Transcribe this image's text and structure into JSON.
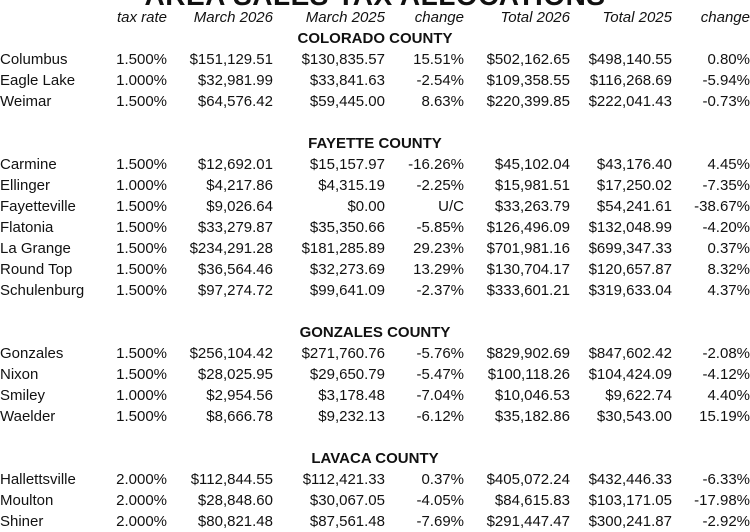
{
  "title": "AREA SALES TAX ALLOCATIONS",
  "headers": [
    "",
    "tax rate",
    "March 2026",
    "March 2025",
    "change",
    "Total 2026",
    "Total 2025",
    "change"
  ],
  "groups": [
    {
      "county": "COLORADO COUNTY",
      "rows": [
        [
          "Columbus",
          "1.500%",
          "$151,129.51",
          "$130,835.57",
          "15.51%",
          "$502,162.65",
          "$498,140.55",
          "0.80%"
        ],
        [
          "Eagle Lake",
          "1.000%",
          "$32,981.99",
          "$33,841.63",
          "-2.54%",
          "$109,358.55",
          "$116,268.69",
          "-5.94%"
        ],
        [
          "Weimar",
          "1.500%",
          "$64,576.42",
          "$59,445.00",
          "8.63%",
          "$220,399.85",
          "$222,041.43",
          "-0.73%"
        ]
      ]
    },
    {
      "county": "FAYETTE COUNTY",
      "rows": [
        [
          "Carmine",
          "1.500%",
          "$12,692.01",
          "$15,157.97",
          "-16.26%",
          "$45,102.04",
          "$43,176.40",
          "4.45%"
        ],
        [
          "Ellinger",
          "1.000%",
          "$4,217.86",
          "$4,315.19",
          "-2.25%",
          "$15,981.51",
          "$17,250.02",
          "-7.35%"
        ],
        [
          "Fayetteville",
          "1.500%",
          "$9,026.64",
          "$0.00",
          "U/C",
          "$33,263.79",
          "$54,241.61",
          "-38.67%"
        ],
        [
          "Flatonia",
          "1.500%",
          "$33,279.87",
          "$35,350.66",
          "-5.85%",
          "$126,496.09",
          "$132,048.99",
          "-4.20%"
        ],
        [
          "La Grange",
          "1.500%",
          "$234,291.28",
          "$181,285.89",
          "29.23%",
          "$701,981.16",
          "$699,347.33",
          "0.37%"
        ],
        [
          "Round Top",
          "1.500%",
          "$36,564.46",
          "$32,273.69",
          "13.29%",
          "$130,704.17",
          "$120,657.87",
          "8.32%"
        ],
        [
          "Schulenburg",
          "1.500%",
          "$97,274.72",
          "$99,641.09",
          "-2.37%",
          "$333,601.21",
          "$319,633.04",
          "4.37%"
        ]
      ]
    },
    {
      "county": "GONZALES COUNTY",
      "rows": [
        [
          "Gonzales",
          "1.500%",
          "$256,104.42",
          "$271,760.76",
          "-5.76%",
          "$829,902.69",
          "$847,602.42",
          "-2.08%"
        ],
        [
          "Nixon",
          "1.500%",
          "$28,025.95",
          "$29,650.79",
          "-5.47%",
          "$100,118.26",
          "$104,424.09",
          "-4.12%"
        ],
        [
          "Smiley",
          "1.000%",
          "$2,954.56",
          "$3,178.48",
          "-7.04%",
          "$10,046.53",
          "$9,622.74",
          "4.40%"
        ],
        [
          "Waelder",
          "1.500%",
          "$8,666.78",
          "$9,232.13",
          "-6.12%",
          "$35,182.86",
          "$30,543.00",
          "15.19%"
        ]
      ]
    },
    {
      "county": "LAVACA COUNTY",
      "rows": [
        [
          "Hallettsville",
          "2.000%",
          "$112,844.55",
          "$112,421.33",
          "0.37%",
          "$405,072.24",
          "$432,446.33",
          "-6.33%"
        ],
        [
          "Moulton",
          "2.000%",
          "$28,848.60",
          "$30,067.05",
          "-4.05%",
          "$84,615.83",
          "$103,171.05",
          "-17.98%"
        ],
        [
          "Shiner",
          "2.000%",
          "$80,821.48",
          "$87,561.48",
          "-7.69%",
          "$291,447.47",
          "$300,241.87",
          "-2.92%"
        ]
      ]
    }
  ]
}
